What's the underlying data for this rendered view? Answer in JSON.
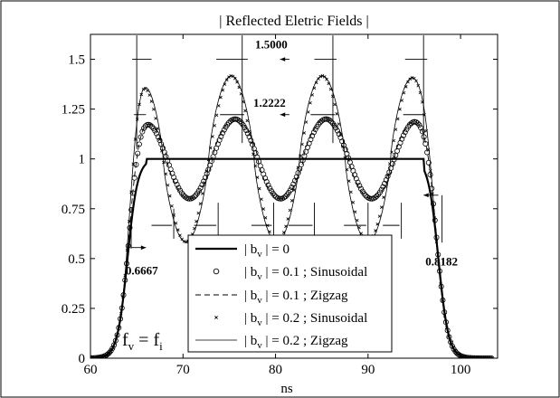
{
  "chart_data": {
    "type": "line",
    "title": "| Reflected Eletric Fields |",
    "xlabel": "ns",
    "ylabel": "",
    "xlim": [
      60,
      104
    ],
    "ylim": [
      0,
      1.625
    ],
    "xticks": [
      60,
      70,
      80,
      90,
      100
    ],
    "yticks": [
      0,
      0.25,
      0.5,
      0.75,
      1,
      1.25,
      1.5
    ],
    "ytick_labels": [
      "0",
      "0.25",
      "0.5",
      "0.75",
      "1",
      "1.25",
      "1.5"
    ],
    "grid": false,
    "legend_position": "bottom-center",
    "series": [
      {
        "name": "| b_v | = 0",
        "style": "thick-solid",
        "points": [
          [
            60,
            0
          ],
          [
            62,
            0.02
          ],
          [
            63,
            0.12
          ],
          [
            64,
            0.45
          ],
          [
            65,
            0.88
          ],
          [
            66,
            1.0
          ],
          [
            95,
            1.0
          ],
          [
            96,
            1.0
          ],
          [
            97,
            0.88
          ],
          [
            98,
            0.45
          ],
          [
            99,
            0.12
          ],
          [
            100,
            0.03
          ],
          [
            102,
            0.005
          ],
          [
            103,
            0
          ]
        ]
      },
      {
        "name": "| b_v | = 0.1 ; Sinusoidal",
        "style": "circle-markers",
        "plateau": {
          "mean": 1.0,
          "amplitude": 0.2,
          "period": 9.83,
          "peak_x": [
            65.8,
            75.6,
            85.4,
            95.2
          ]
        },
        "maximum": 1.2222,
        "minimum": 0.8182
      },
      {
        "name": "| b_v | = 0.1 ; Zigzag",
        "style": "dashed",
        "plateau": {
          "mean": 1.0,
          "amplitude": 0.2,
          "period": 9.83,
          "peak_x": [
            65.8,
            75.6,
            85.4,
            95.2
          ]
        }
      },
      {
        "name": "| b_v | = 0.2 ; Sinusoidal",
        "style": "x-markers",
        "plateau": {
          "mean": 1.0,
          "amplitude": 0.417,
          "period": 9.83,
          "peak_x": [
            65.4,
            75.6,
            85.4,
            95.2
          ]
        },
        "maximum": 1.5,
        "minimum": 0.6667
      },
      {
        "name": "| b_v | = 0.2 ; Zigzag",
        "style": "thin-solid",
        "plateau": {
          "mean": 1.0,
          "amplitude": 0.417,
          "period": 9.83,
          "peak_x": [
            65.4,
            75.6,
            85.4,
            95.2
          ]
        }
      }
    ],
    "annotations": [
      {
        "text": "1.5000",
        "x": 77.5,
        "y": 1.5
      },
      {
        "text": "1.2222",
        "x": 77.5,
        "y": 1.22
      },
      {
        "text": "0.6667",
        "x": 63.5,
        "y": 0.667
      },
      {
        "text": "0.8182",
        "x": 96.5,
        "y": 0.818
      }
    ],
    "note": "f_v = f_i"
  }
}
